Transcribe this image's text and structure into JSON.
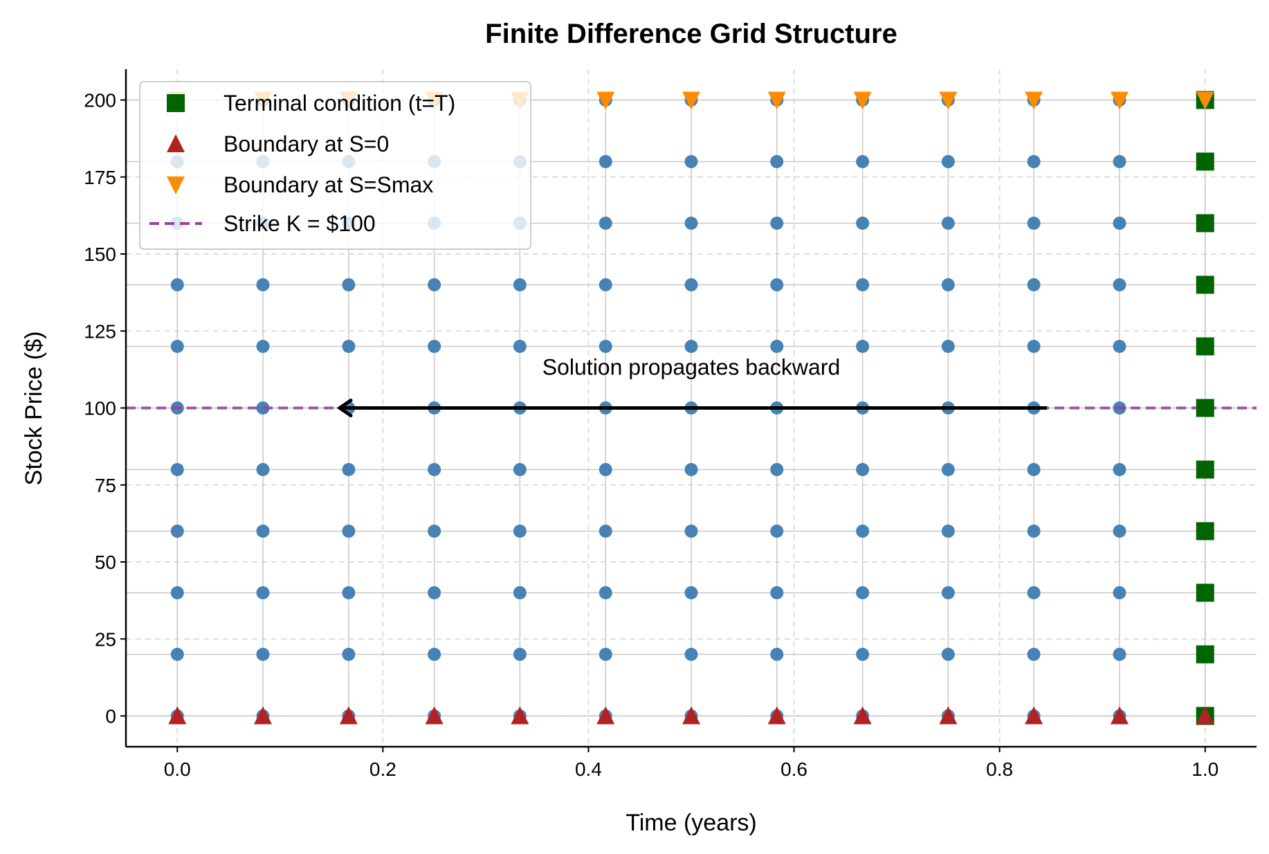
{
  "chart_data": {
    "type": "scatter",
    "title": "Finite Difference Grid Structure",
    "xlabel": "Time (years)",
    "ylabel": "Stock Price ($)",
    "xlim": [
      -0.05,
      1.05
    ],
    "ylim": [
      -10,
      210
    ],
    "xticks": [
      0.0,
      0.2,
      0.4,
      0.6,
      0.8,
      1.0
    ],
    "xtick_labels": [
      "0.0",
      "0.2",
      "0.4",
      "0.6",
      "0.8",
      "1.0"
    ],
    "yticks": [
      0,
      25,
      50,
      75,
      100,
      125,
      150,
      175,
      200
    ],
    "ytick_labels": [
      "0",
      "25",
      "50",
      "75",
      "100",
      "125",
      "150",
      "175",
      "200"
    ],
    "grid": true,
    "time_nodes": [
      0,
      0.0833,
      0.1667,
      0.25,
      0.3333,
      0.4167,
      0.5,
      0.5833,
      0.6667,
      0.75,
      0.8333,
      0.9167,
      1.0
    ],
    "price_nodes": [
      0,
      20,
      40,
      60,
      80,
      100,
      120,
      140,
      160,
      180,
      200
    ],
    "colors": {
      "grid_points": "#4682b4",
      "terminal": "#006400",
      "boundary_zero": "#b22222",
      "boundary_max": "#ff8c00",
      "strike": "#9b3fa0"
    },
    "series": [
      {
        "name": "Terminal condition (t=T)",
        "marker": "square",
        "x": [
          1.0
        ],
        "y": "all price_nodes"
      },
      {
        "name": "Boundary at S=0",
        "marker": "triangle-up",
        "x": "all time_nodes",
        "y": [
          0
        ]
      },
      {
        "name": "Boundary at S=Smax",
        "marker": "triangle-down",
        "x": "all time_nodes",
        "y": [
          200
        ]
      },
      {
        "name": "Strike K = $100",
        "type": "hline",
        "y": 100
      }
    ],
    "legend_position": "upper-left",
    "annotation": {
      "text": "Solution propagates backward",
      "text_at": [
        0.5,
        113
      ],
      "arrow_from": [
        0.846,
        100
      ],
      "arrow_to": [
        0.158,
        100
      ]
    }
  }
}
